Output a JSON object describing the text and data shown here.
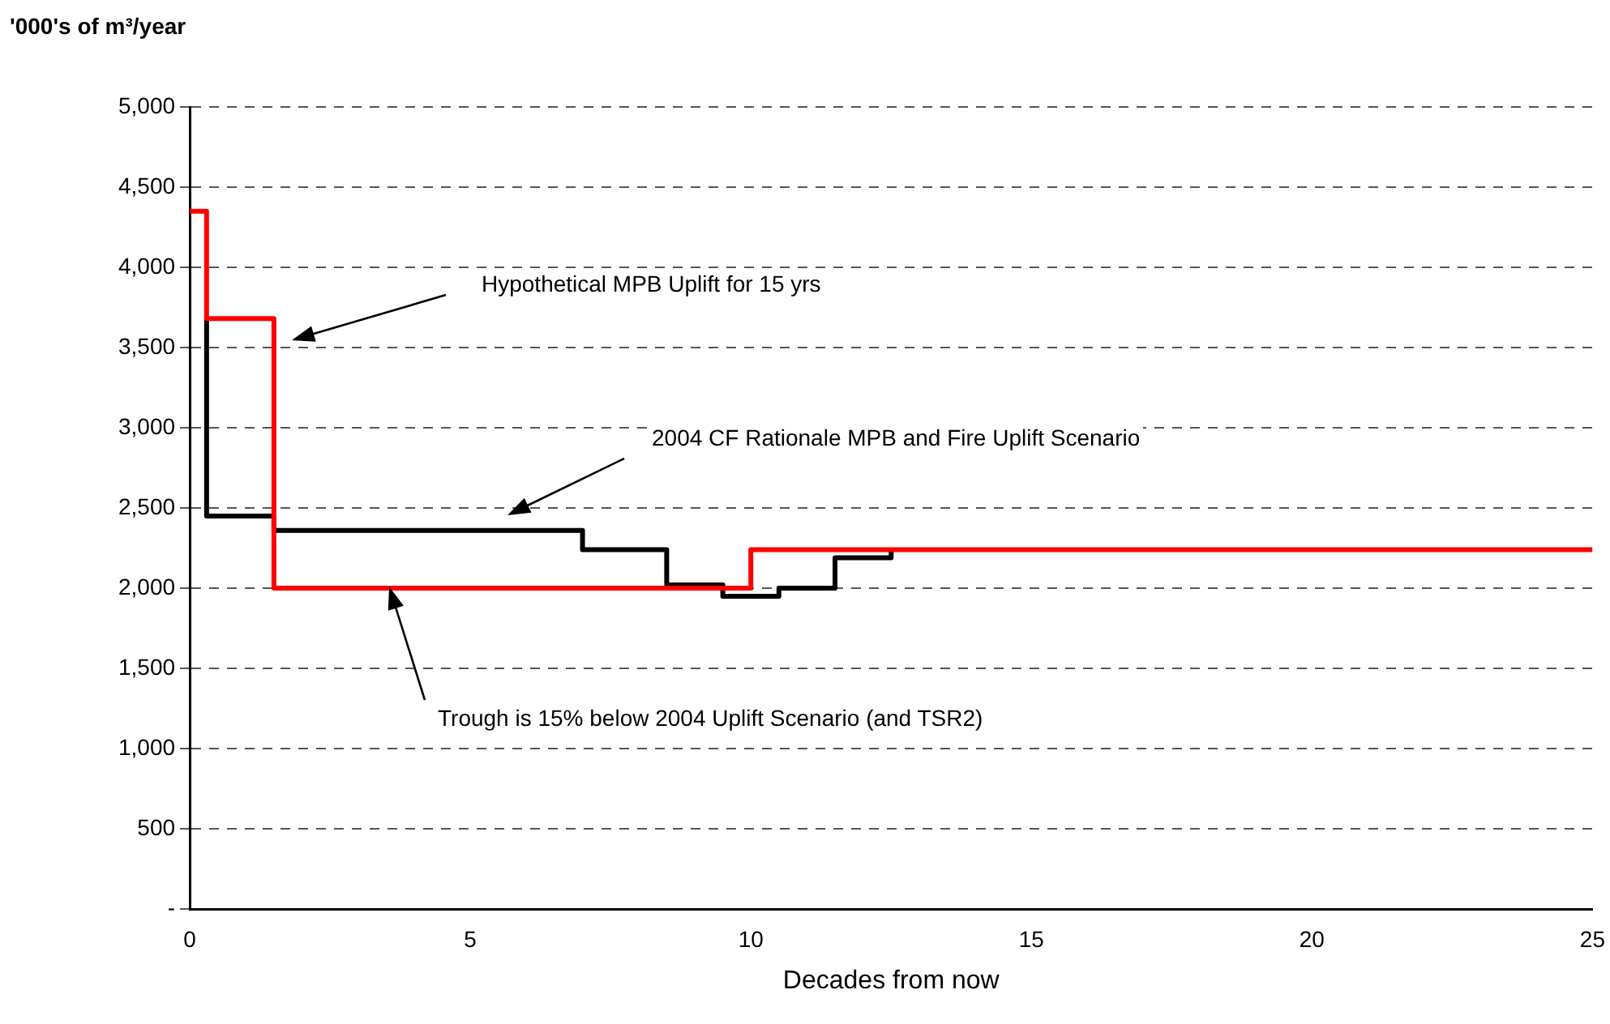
{
  "chart_data": {
    "type": "step",
    "ylabel": "'000's of m³/year",
    "xlabel": "Decades from now",
    "series": [
      {
        "color": "#000000",
        "x": [
          0.3,
          0.3,
          1.5,
          7,
          8.5,
          9.5,
          10.5,
          11.5,
          12.5
        ],
        "values": [
          3680,
          2450,
          2360,
          2240,
          2020,
          1950,
          2000,
          2190,
          2240
        ]
      },
      {
        "color": "#ff0000",
        "x": [
          0,
          0.3,
          1.5,
          10,
          25
        ],
        "values": [
          4350,
          3680,
          2000,
          2240,
          2240
        ]
      }
    ],
    "xlim": [
      0,
      25
    ],
    "xticks": [
      0,
      5,
      10,
      15,
      20,
      25
    ],
    "ylim": [
      0,
      5000
    ],
    "yticks": [
      {
        "value": 0,
        "label": "-"
      },
      500,
      {
        "value": 1000,
        "label": "1,000"
      },
      {
        "value": 1500,
        "label": "1,500"
      },
      {
        "value": 2000,
        "label": "2,000"
      },
      {
        "value": 2500,
        "label": "2,500"
      },
      {
        "value": 3000,
        "label": "3,000"
      },
      {
        "value": 3500,
        "label": "3,500"
      },
      {
        "value": 4000,
        "label": "4,000"
      },
      {
        "value": 4500,
        "label": "4,500"
      },
      {
        "value": 5000,
        "label": "5,000"
      }
    ],
    "grid": "y",
    "legend": false,
    "line_style": "solid",
    "marker": "none",
    "annotations": [
      "Hypothetical MPB Uplift for 15 yrs",
      "2004 CF Rationale MPB and Fire Uplift Scenario",
      "Trough is 15% below 2004 Uplift Scenario (and TSR2)"
    ]
  }
}
